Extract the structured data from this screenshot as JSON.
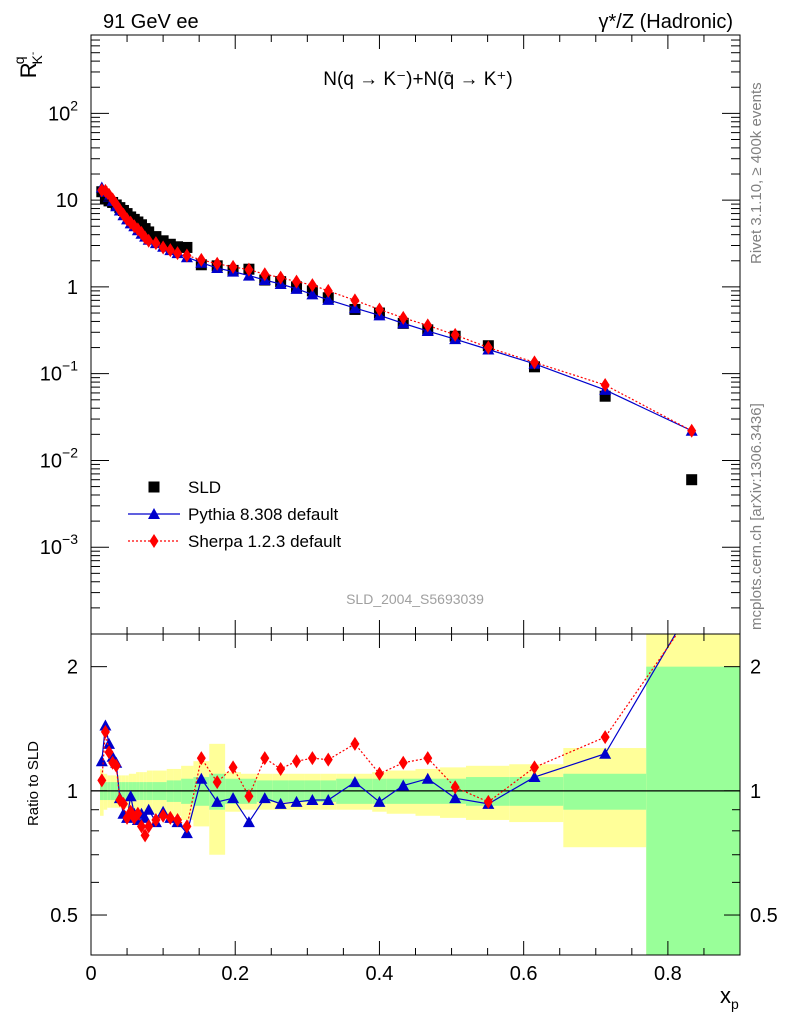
{
  "header": {
    "left_label": "91 GeV ee",
    "right_label": "γ*/Z (Hadronic)"
  },
  "side_labels": {
    "rivet": "Rivet 3.1.10, ≥ 400k events",
    "mcplots": "mcplots.cern.ch [arXiv:1306.3436]"
  },
  "analysis_id": "SLD_2004_S5693039",
  "chart_data": [
    {
      "type": "scatter",
      "panel": "main",
      "title": "N(q → K⁻)+N(q̄ → K⁺)",
      "ylabel": "R_K⁻^q",
      "xlabel": "x_p",
      "y_scale": "log",
      "xlim": [
        0,
        0.9
      ],
      "ylim": [
        0.0001,
        800
      ],
      "y_tick_labels": [
        {
          "value": 0.001,
          "base": "10",
          "exp": "−3"
        },
        {
          "value": 0.01,
          "base": "10",
          "exp": "−2"
        },
        {
          "value": 0.1,
          "base": "10",
          "exp": "−1"
        },
        {
          "value": 1,
          "base": "1",
          "exp": ""
        },
        {
          "value": 10,
          "base": "10",
          "exp": ""
        },
        {
          "value": 100,
          "base": "10",
          "exp": "2"
        }
      ],
      "legend_position": "bottom-left",
      "series": [
        {
          "name": "SLD",
          "style": "data",
          "color": "#000000",
          "x": [
            0.015,
            0.02,
            0.025,
            0.03,
            0.035,
            0.04,
            0.045,
            0.05,
            0.055,
            0.06,
            0.065,
            0.07,
            0.075,
            0.08,
            0.09,
            0.1,
            0.11,
            0.12,
            0.133,
            0.153,
            0.175,
            0.197,
            0.219,
            0.241,
            0.263,
            0.285,
            0.307,
            0.329,
            0.366,
            0.4,
            0.433,
            0.467,
            0.505,
            0.551,
            0.615,
            0.713,
            0.833
          ],
          "y": [
            12.5,
            10.3,
            9.8,
            9.4,
            8.8,
            8.2,
            7.6,
            7.0,
            6.4,
            6.0,
            5.6,
            5.2,
            4.7,
            4.3,
            3.8,
            3.4,
            3.1,
            2.9,
            2.85,
            1.8,
            1.75,
            1.55,
            1.6,
            1.2,
            1.15,
            1.0,
            0.9,
            0.75,
            0.55,
            0.5,
            0.38,
            0.32,
            0.27,
            0.21,
            0.12,
            0.055,
            0.006
          ]
        },
        {
          "name": "Pythia 8.308 default",
          "style": "line-triangle",
          "color": "#0000cc",
          "x": [
            0.015,
            0.02,
            0.025,
            0.03,
            0.035,
            0.04,
            0.045,
            0.05,
            0.055,
            0.06,
            0.065,
            0.07,
            0.075,
            0.08,
            0.09,
            0.1,
            0.11,
            0.12,
            0.133,
            0.153,
            0.175,
            0.197,
            0.219,
            0.241,
            0.263,
            0.285,
            0.307,
            0.329,
            0.366,
            0.4,
            0.433,
            0.467,
            0.505,
            0.551,
            0.615,
            0.713,
            0.833
          ],
          "y": [
            14.0,
            12.5,
            11.0,
            9.8,
            8.5,
            7.6,
            6.7,
            6.0,
            5.4,
            5.0,
            4.5,
            4.1,
            3.8,
            3.5,
            3.2,
            2.9,
            2.65,
            2.45,
            2.2,
            1.9,
            1.65,
            1.5,
            1.35,
            1.2,
            1.08,
            0.95,
            0.82,
            0.71,
            0.57,
            0.47,
            0.38,
            0.31,
            0.25,
            0.19,
            0.13,
            0.065,
            0.022
          ]
        },
        {
          "name": "Sherpa 1.2.3 default",
          "style": "dotted-diamond",
          "color": "#ff0000",
          "x": [
            0.015,
            0.02,
            0.025,
            0.03,
            0.035,
            0.04,
            0.045,
            0.05,
            0.055,
            0.06,
            0.065,
            0.07,
            0.075,
            0.08,
            0.09,
            0.1,
            0.11,
            0.12,
            0.133,
            0.153,
            0.175,
            0.197,
            0.219,
            0.241,
            0.263,
            0.285,
            0.307,
            0.329,
            0.366,
            0.4,
            0.433,
            0.467,
            0.505,
            0.551,
            0.615,
            0.713,
            0.833
          ],
          "y": [
            13.0,
            12.8,
            11.5,
            10.2,
            8.9,
            7.7,
            6.8,
            6.0,
            5.5,
            5.0,
            4.6,
            4.2,
            3.7,
            3.4,
            3.2,
            2.85,
            2.65,
            2.45,
            2.3,
            2.05,
            1.85,
            1.7,
            1.58,
            1.4,
            1.28,
            1.15,
            1.05,
            0.9,
            0.7,
            0.55,
            0.44,
            0.36,
            0.28,
            0.2,
            0.135,
            0.074,
            0.022
          ]
        }
      ]
    },
    {
      "type": "line",
      "panel": "ratio",
      "ylabel": "Ratio to SLD",
      "xlabel": "x_p",
      "y_scale": "log",
      "xlim": [
        0,
        0.9
      ],
      "ylim": [
        0.4,
        2.4
      ],
      "x_tick_labels": [
        "0",
        "0.2",
        "0.4",
        "0.6",
        "0.8"
      ],
      "y_tick_labels": [
        "0.5",
        "1",
        "2"
      ],
      "reference_line": 1,
      "bands": {
        "edges": [
          0.0125,
          0.0175,
          0.0225,
          0.0275,
          0.0325,
          0.0375,
          0.0425,
          0.0475,
          0.0525,
          0.0575,
          0.0625,
          0.0675,
          0.0725,
          0.0775,
          0.085,
          0.095,
          0.105,
          0.115,
          0.125,
          0.142,
          0.164,
          0.186,
          0.208,
          0.23,
          0.252,
          0.274,
          0.296,
          0.318,
          0.34,
          0.39,
          0.41,
          0.45,
          0.484,
          0.52,
          0.58,
          0.655,
          0.77,
          0.9
        ],
        "inner_half_width": [
          0.05,
          0.05,
          0.05,
          0.05,
          0.05,
          0.05,
          0.05,
          0.05,
          0.05,
          0.05,
          0.05,
          0.05,
          0.05,
          0.05,
          0.05,
          0.05,
          0.06,
          0.06,
          0.07,
          0.08,
          0.1,
          0.07,
          0.07,
          0.06,
          0.06,
          0.06,
          0.06,
          0.06,
          0.07,
          0.07,
          0.07,
          0.07,
          0.07,
          0.08,
          0.08,
          0.1,
          1.0
        ],
        "outer_half_width": [
          0.13,
          0.1,
          0.09,
          0.09,
          0.09,
          0.09,
          0.09,
          0.09,
          0.1,
          0.1,
          0.11,
          0.11,
          0.11,
          0.12,
          0.12,
          0.12,
          0.13,
          0.13,
          0.15,
          0.18,
          0.3,
          0.11,
          0.1,
          0.1,
          0.1,
          0.1,
          0.1,
          0.1,
          0.1,
          0.11,
          0.12,
          0.13,
          0.14,
          0.15,
          0.16,
          0.27,
          2.0
        ],
        "inner_color": "#99ff99",
        "outer_color": "#ffff99"
      },
      "series": [
        {
          "name": "Pythia 8.308 default",
          "color": "#0000cc",
          "x": [
            0.015,
            0.02,
            0.025,
            0.03,
            0.035,
            0.04,
            0.045,
            0.05,
            0.055,
            0.06,
            0.065,
            0.07,
            0.075,
            0.08,
            0.09,
            0.1,
            0.11,
            0.12,
            0.133,
            0.153,
            0.175,
            0.197,
            0.219,
            0.241,
            0.263,
            0.285,
            0.307,
            0.329,
            0.366,
            0.4,
            0.433,
            0.467,
            0.505,
            0.551,
            0.615,
            0.713,
            0.833
          ],
          "y": [
            1.18,
            1.44,
            1.3,
            1.21,
            1.17,
            0.96,
            0.88,
            0.86,
            0.97,
            0.88,
            0.85,
            0.88,
            0.86,
            0.9,
            0.84,
            0.89,
            0.86,
            0.84,
            0.79,
            1.07,
            0.94,
            0.96,
            0.84,
            0.96,
            0.93,
            0.94,
            0.95,
            0.95,
            1.05,
            0.94,
            1.03,
            1.07,
            0.96,
            0.93,
            1.08,
            1.23,
            2.8
          ]
        },
        {
          "name": "Sherpa 1.2.3 default",
          "color": "#ff0000",
          "x": [
            0.015,
            0.02,
            0.025,
            0.03,
            0.035,
            0.04,
            0.045,
            0.05,
            0.055,
            0.06,
            0.065,
            0.07,
            0.075,
            0.08,
            0.09,
            0.1,
            0.11,
            0.12,
            0.133,
            0.153,
            0.175,
            0.197,
            0.219,
            0.241,
            0.263,
            0.285,
            0.307,
            0.329,
            0.366,
            0.4,
            0.433,
            0.467,
            0.505,
            0.551,
            0.615,
            0.713,
            0.833
          ],
          "y": [
            1.06,
            1.39,
            1.24,
            1.17,
            1.15,
            0.95,
            0.93,
            0.86,
            0.89,
            0.86,
            0.88,
            0.82,
            0.78,
            0.82,
            0.85,
            0.87,
            0.86,
            0.85,
            0.82,
            1.2,
            1.05,
            1.14,
            0.97,
            1.2,
            1.13,
            1.18,
            1.2,
            1.19,
            1.3,
            1.1,
            1.17,
            1.2,
            1.02,
            0.94,
            1.14,
            1.35,
            2.7
          ]
        }
      ]
    }
  ]
}
